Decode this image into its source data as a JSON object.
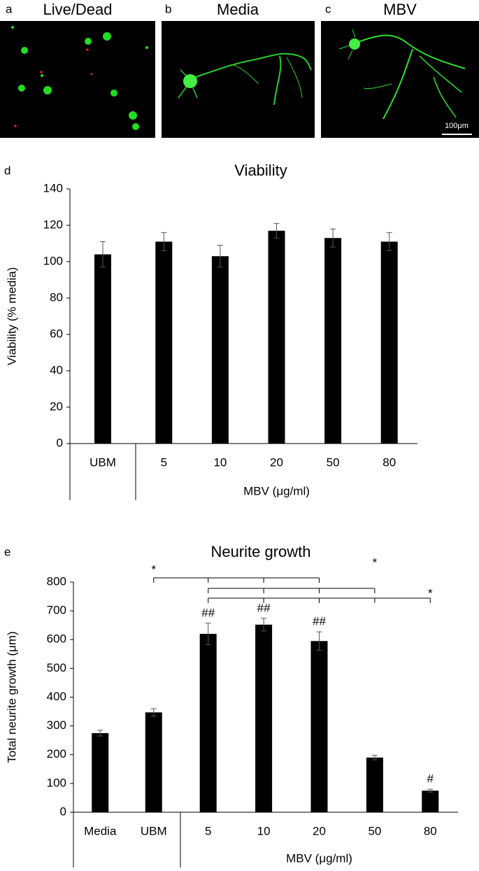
{
  "panels": [
    {
      "label": "a",
      "title": "Live/Dead"
    },
    {
      "label": "b",
      "title": "Media"
    },
    {
      "label": "c",
      "title": "MBV",
      "scale_bar": "100μm"
    }
  ],
  "chart_data": [
    {
      "type": "bar",
      "panel_label": "d",
      "title": "Viability",
      "ylabel": "Viability (% media)",
      "xlabel": "MBV (μg/ml)",
      "categories": [
        "UBM",
        "5",
        "10",
        "20",
        "50",
        "80"
      ],
      "series": [
        {
          "color": "#000000",
          "values": [
            104,
            111,
            103,
            117,
            113,
            111
          ],
          "errors": [
            7,
            5,
            6,
            4,
            5,
            5
          ]
        }
      ],
      "ylim": [
        0,
        140
      ],
      "yticks": [
        0,
        20,
        40,
        60,
        80,
        100,
        120,
        140
      ]
    },
    {
      "type": "bar",
      "panel_label": "e",
      "title": "Neurite growth",
      "ylabel": "Total neurite growth (μm)",
      "xlabel": "MBV (μg/ml)",
      "categories": [
        "Media",
        "UBM",
        "5",
        "10",
        "20",
        "50",
        "80"
      ],
      "series": [
        {
          "color": "#000000",
          "values": [
            275,
            347,
            620,
            652,
            595,
            190,
            75
          ],
          "errors": [
            10,
            13,
            37,
            22,
            32,
            8,
            5
          ]
        }
      ],
      "annotations": [
        null,
        null,
        "##",
        "##",
        "##",
        null,
        "#"
      ],
      "significance": [
        "*",
        "*",
        "*"
      ],
      "ylim": [
        0,
        800
      ],
      "yticks": [
        0,
        100,
        200,
        300,
        400,
        500,
        600,
        700,
        800
      ]
    }
  ]
}
